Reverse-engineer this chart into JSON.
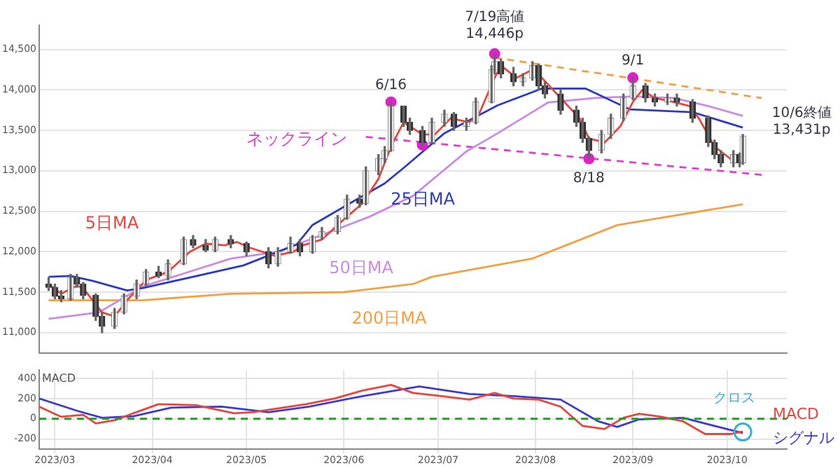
{
  "chart_data": [
    {
      "type": "candlestick",
      "x": [
        "2023-02-27",
        "2023-03-01",
        "2023-03-03",
        "2023-03-06",
        "2023-03-08",
        "2023-03-10",
        "2023-03-14",
        "2023-03-16",
        "2023-03-20",
        "2023-03-23",
        "2023-03-27",
        "2023-03-30",
        "2023-04-03",
        "2023-04-06",
        "2023-04-11",
        "2023-04-14",
        "2023-04-18",
        "2023-04-21",
        "2023-04-26",
        "2023-05-01",
        "2023-05-08",
        "2023-05-11",
        "2023-05-15",
        "2023-05-18",
        "2023-05-22",
        "2023-05-25",
        "2023-05-30",
        "2023-06-02",
        "2023-06-06",
        "2023-06-08",
        "2023-06-12",
        "2023-06-14",
        "2023-06-16",
        "2023-06-20",
        "2023-06-22",
        "2023-06-26",
        "2023-06-29",
        "2023-07-03",
        "2023-07-06",
        "2023-07-10",
        "2023-07-13",
        "2023-07-18",
        "2023-07-19",
        "2023-07-21",
        "2023-07-25",
        "2023-07-28",
        "2023-07-31",
        "2023-08-02",
        "2023-08-04",
        "2023-08-09",
        "2023-08-14",
        "2023-08-16",
        "2023-08-18",
        "2023-08-22",
        "2023-08-25",
        "2023-08-29",
        "2023-09-01",
        "2023-09-05",
        "2023-09-08",
        "2023-09-12",
        "2023-09-15",
        "2023-09-20",
        "2023-09-25",
        "2023-09-27",
        "2023-09-29",
        "2023-10-03",
        "2023-10-05",
        "2023-10-06"
      ],
      "ohlc": [
        [
          11600,
          11680,
          11520,
          11560
        ],
        [
          11560,
          11600,
          11420,
          11450
        ],
        [
          11450,
          11520,
          11380,
          11420
        ],
        [
          11420,
          11720,
          11400,
          11680
        ],
        [
          11680,
          11720,
          11560,
          11600
        ],
        [
          11600,
          11620,
          11420,
          11460
        ],
        [
          11460,
          11480,
          11150,
          11200
        ],
        [
          11200,
          11250,
          11000,
          11080
        ],
        [
          11080,
          11300,
          11050,
          11250
        ],
        [
          11250,
          11480,
          11230,
          11450
        ],
        [
          11450,
          11650,
          11420,
          11600
        ],
        [
          11600,
          11780,
          11580,
          11750
        ],
        [
          11750,
          11820,
          11680,
          11700
        ],
        [
          11700,
          11900,
          11650,
          11850
        ],
        [
          11850,
          12180,
          11840,
          12150
        ],
        [
          12150,
          12200,
          12050,
          12080
        ],
        [
          12080,
          12150,
          12000,
          12020
        ],
        [
          12020,
          12180,
          12000,
          12150
        ],
        [
          12150,
          12200,
          12050,
          12100
        ],
        [
          12100,
          12120,
          11950,
          12000
        ],
        [
          12000,
          12050,
          11800,
          11850
        ],
        [
          11850,
          12050,
          11820,
          12000
        ],
        [
          12000,
          12180,
          11980,
          12100
        ],
        [
          12100,
          12150,
          11950,
          12000
        ],
        [
          12000,
          12200,
          11980,
          12180
        ],
        [
          12180,
          12300,
          12150,
          12250
        ],
        [
          12250,
          12450,
          12220,
          12420
        ],
        [
          12420,
          12700,
          12400,
          12650
        ],
        [
          12650,
          12700,
          12550,
          12600
        ],
        [
          12600,
          13050,
          12580,
          13000
        ],
        [
          13000,
          13200,
          12950,
          13150
        ],
        [
          13150,
          13300,
          13100,
          13250
        ],
        [
          13250,
          13850,
          13240,
          13800
        ],
        [
          13800,
          13800,
          13550,
          13600
        ],
        [
          13600,
          13650,
          13450,
          13500
        ],
        [
          13500,
          13550,
          13300,
          13350
        ],
        [
          13350,
          13650,
          13340,
          13600
        ],
        [
          13600,
          13750,
          13550,
          13700
        ],
        [
          13700,
          13720,
          13500,
          13550
        ],
        [
          13550,
          13650,
          13500,
          13600
        ],
        [
          13600,
          13900,
          13580,
          13850
        ],
        [
          13850,
          14300,
          13840,
          14250
        ],
        [
          14250,
          14446,
          14200,
          14350
        ],
        [
          14350,
          14380,
          14150,
          14200
        ],
        [
          14200,
          14280,
          14050,
          14100
        ],
        [
          14100,
          14200,
          14050,
          14150
        ],
        [
          14150,
          14350,
          14120,
          14300
        ],
        [
          14300,
          14320,
          14000,
          14050
        ],
        [
          14050,
          14100,
          13900,
          13950
        ],
        [
          13950,
          14000,
          13700,
          13750
        ],
        [
          13750,
          13800,
          13550,
          13600
        ],
        [
          13600,
          13650,
          13350,
          13400
        ],
        [
          13400,
          13420,
          13150,
          13250
        ],
        [
          13250,
          13500,
          13220,
          13450
        ],
        [
          13450,
          13700,
          13400,
          13650
        ],
        [
          13650,
          13950,
          13620,
          13900
        ],
        [
          13900,
          14150,
          13880,
          14050
        ],
        [
          14050,
          14080,
          13850,
          13900
        ],
        [
          13900,
          13950,
          13800,
          13850
        ],
        [
          13850,
          13950,
          13820,
          13900
        ],
        [
          13900,
          13950,
          13800,
          13850
        ],
        [
          13850,
          13880,
          13600,
          13650
        ],
        [
          13650,
          13680,
          13300,
          13350
        ],
        [
          13350,
          13380,
          13150,
          13200
        ],
        [
          13200,
          13250,
          13050,
          13100
        ],
        [
          13100,
          13250,
          13050,
          13200
        ],
        [
          13200,
          13220,
          13050,
          13100
        ],
        [
          13100,
          13450,
          13080,
          13431
        ]
      ],
      "series": [
        {
          "name": "5日MA",
          "type": "line",
          "color": "#e8453c",
          "x": [
            "2023-02-27",
            "2023-03-03",
            "2023-03-08",
            "2023-03-10",
            "2023-03-16",
            "2023-03-20",
            "2023-03-24",
            "2023-03-30",
            "2023-04-06",
            "2023-04-13",
            "2023-04-18",
            "2023-04-24",
            "2023-04-28",
            "2023-05-02",
            "2023-05-10",
            "2023-05-16",
            "2023-05-19",
            "2023-05-25",
            "2023-06-01",
            "2023-06-07",
            "2023-06-12",
            "2023-06-16",
            "2023-06-20",
            "2023-06-26",
            "2023-06-30",
            "2023-07-05",
            "2023-07-11",
            "2023-07-14",
            "2023-07-19",
            "2023-07-21",
            "2023-07-26",
            "2023-07-31",
            "2023-08-03",
            "2023-08-09",
            "2023-08-15",
            "2023-08-18",
            "2023-08-23",
            "2023-08-28",
            "2023-09-01",
            "2023-09-04",
            "2023-09-08",
            "2023-09-14",
            "2023-09-19",
            "2023-09-22",
            "2023-09-27",
            "2023-10-02",
            "2023-10-04"
          ],
          "values": [
            11600,
            11480,
            11580,
            11550,
            11250,
            11200,
            11400,
            11650,
            11750,
            12000,
            12100,
            12080,
            12120,
            12050,
            11950,
            12000,
            12080,
            12150,
            12400,
            12600,
            12900,
            13300,
            13600,
            13450,
            13450,
            13650,
            13600,
            13700,
            14150,
            14300,
            14150,
            14250,
            14150,
            13900,
            13650,
            13400,
            13350,
            13550,
            13850,
            14000,
            13900,
            13850,
            13800,
            13650,
            13300,
            13150,
            13200
          ]
        },
        {
          "name": "25日MA",
          "type": "line",
          "color": "#2b3bc4",
          "x": [
            "2023-02-27",
            "2023-03-06",
            "2023-03-13",
            "2023-03-24",
            "2023-03-29",
            "2023-04-30",
            "2023-05-17",
            "2023-05-22",
            "2023-06-03",
            "2023-06-14",
            "2023-06-20",
            "2023-07-03",
            "2023-07-20",
            "2023-08-03",
            "2023-08-17",
            "2023-08-31",
            "2023-09-20",
            "2023-10-06"
          ],
          "values": [
            11690,
            11700,
            11640,
            11520,
            11550,
            11830,
            12090,
            12330,
            12600,
            12845,
            13035,
            13465,
            13810,
            14017,
            14017,
            13760,
            13725,
            13534
          ]
        },
        {
          "name": "50日MA",
          "type": "line",
          "color": "#c98be6",
          "x": [
            "2023-02-27",
            "2023-03-15",
            "2023-03-29",
            "2023-04-26",
            "2023-05-11",
            "2023-05-25",
            "2023-06-09",
            "2023-06-23",
            "2023-07-10",
            "2023-07-20",
            "2023-08-05",
            "2023-08-20",
            "2023-09-01",
            "2023-09-14",
            "2023-09-25",
            "2023-10-06"
          ],
          "values": [
            11170,
            11250,
            11570,
            11915,
            12000,
            12207,
            12430,
            12690,
            13240,
            13465,
            13845,
            13900,
            13920,
            13900,
            13800,
            13680
          ]
        },
        {
          "name": "200日MA",
          "type": "line",
          "color": "#f5a040",
          "x": [
            "2023-02-27",
            "2023-03-29",
            "2023-04-26",
            "2023-06-01",
            "2023-06-23",
            "2023-06-29",
            "2023-07-31",
            "2023-08-27",
            "2023-10-06"
          ],
          "values": [
            11400,
            11400,
            11480,
            11500,
            11600,
            11690,
            11915,
            12328,
            12586
          ]
        },
        {
          "name": "ネックライン",
          "type": "line",
          "color": "#e040d0",
          "line_style": "dashed",
          "x": [
            "2023-06-08",
            "2023-10-12"
          ],
          "values": [
            13420,
            12950
          ]
        },
        {
          "type": "line",
          "color": "#f5a040",
          "line_style": "dashed",
          "x": [
            "2023-07-19",
            "2023-10-12"
          ],
          "values": [
            14400,
            13900
          ]
        },
        {
          "type": "scatter",
          "color": "#e020c8",
          "marker": "circle",
          "x": [
            "2023-06-16",
            "2023-06-26",
            "2023-07-19",
            "2023-08-18",
            "2023-09-01"
          ],
          "values": [
            13850,
            13320,
            14446,
            13150,
            14150
          ]
        }
      ],
      "annotations": [
        {
          "text": "6/16",
          "x": "2023-06-16",
          "y": 13850
        },
        {
          "text": "7/19高値\n14,446p",
          "x": "2023-07-19",
          "y": 14446
        },
        {
          "text": "9/1",
          "x": "2023-09-01",
          "y": 14150
        },
        {
          "text": "8/18",
          "x": "2023-08-18",
          "y": 13150
        },
        {
          "text": "10/6終値\n13,431p",
          "x": "2023-10-06",
          "y": 13431
        }
      ],
      "xlim": [
        "2023-02-24",
        "2023-10-20"
      ],
      "xticks": [
        {
          "value": "2023-03-01",
          "label": null
        },
        {
          "value": "2023-04-01",
          "label": null
        },
        {
          "value": "2023-05-01",
          "label": null
        },
        {
          "value": "2023-06-01",
          "label": null
        },
        {
          "value": "2023-07-01",
          "label": null
        },
        {
          "value": "2023-08-01",
          "label": null
        },
        {
          "value": "2023-09-01",
          "label": null
        },
        {
          "value": "2023-10-01",
          "label": null
        }
      ],
      "ylim": [
        10750,
        14800
      ],
      "yticks": [
        {
          "value": 11000,
          "label": "11,000"
        },
        {
          "value": 11500,
          "label": "11,500"
        },
        {
          "value": 12000,
          "label": "12,000"
        },
        {
          "value": 12500,
          "label": "12,500"
        },
        {
          "value": 13000,
          "label": "13,000"
        },
        {
          "value": 13500,
          "label": "13,500"
        },
        {
          "value": 14000,
          "label": "14,000"
        },
        {
          "value": 14500,
          "label": "14,500"
        }
      ],
      "tick_labels": "y",
      "grid": true,
      "marker": "none"
    },
    {
      "type": "line",
      "title": "MACD",
      "series": [
        {
          "name": "MACD",
          "color": "#e8453c",
          "x": [
            "2023-02-24",
            "2023-03-03",
            "2023-03-10",
            "2023-03-14",
            "2023-03-20",
            "2023-03-26",
            "2023-04-03",
            "2023-04-15",
            "2023-04-27",
            "2023-05-03",
            "2023-05-20",
            "2023-05-29",
            "2023-06-07",
            "2023-06-16",
            "2023-06-23",
            "2023-07-02",
            "2023-07-11",
            "2023-07-19",
            "2023-07-25",
            "2023-08-02",
            "2023-08-09",
            "2023-08-16",
            "2023-08-23",
            "2023-08-29",
            "2023-09-03",
            "2023-09-10",
            "2023-09-17",
            "2023-09-24",
            "2023-10-02",
            "2023-10-06"
          ],
          "values": [
            120,
            20,
            40,
            -45,
            -15,
            55,
            145,
            135,
            55,
            65,
            145,
            200,
            280,
            335,
            255,
            225,
            190,
            255,
            200,
            190,
            120,
            -70,
            -100,
            10,
            50,
            20,
            -25,
            -150,
            -150,
            -125
          ]
        },
        {
          "name": "シグナル",
          "color": "#3b3bd0",
          "x": [
            "2023-02-24",
            "2023-03-08",
            "2023-03-16",
            "2023-03-26",
            "2023-04-07",
            "2023-04-23",
            "2023-05-08",
            "2023-05-21",
            "2023-06-07",
            "2023-06-25",
            "2023-07-11",
            "2023-07-25",
            "2023-08-09",
            "2023-08-21",
            "2023-08-27",
            "2023-09-03",
            "2023-09-17",
            "2023-10-02",
            "2023-10-06"
          ],
          "values": [
            200,
            80,
            10,
            25,
            110,
            120,
            65,
            120,
            225,
            320,
            245,
            225,
            190,
            -25,
            -80,
            -5,
            10,
            -110,
            -140
          ]
        }
      ],
      "ref_lines": [
        {
          "axis": "y",
          "value": 0,
          "color": "#20a020",
          "line_style": "dashed"
        }
      ],
      "annotations": [
        {
          "text": "クロス",
          "x": "2023-10-06",
          "y": -130
        }
      ],
      "xlim": [
        "2023-02-24",
        "2023-10-20"
      ],
      "xticks": [
        {
          "value": "2023-03-01",
          "label": "2023/03"
        },
        {
          "value": "2023-04-01",
          "label": "2023/04"
        },
        {
          "value": "2023-05-01",
          "label": "2023/05"
        },
        {
          "value": "2023-06-01",
          "label": "2023/06"
        },
        {
          "value": "2023-07-01",
          "label": "2023/07"
        },
        {
          "value": "2023-08-01",
          "label": "2023/08"
        },
        {
          "value": "2023-09-01",
          "label": "2023/09"
        },
        {
          "value": "2023-10-01",
          "label": "2023/10"
        }
      ],
      "ylim": [
        -300,
        480
      ],
      "yticks": [
        -200,
        0,
        200,
        400
      ],
      "grid": true,
      "marker": "none"
    }
  ]
}
